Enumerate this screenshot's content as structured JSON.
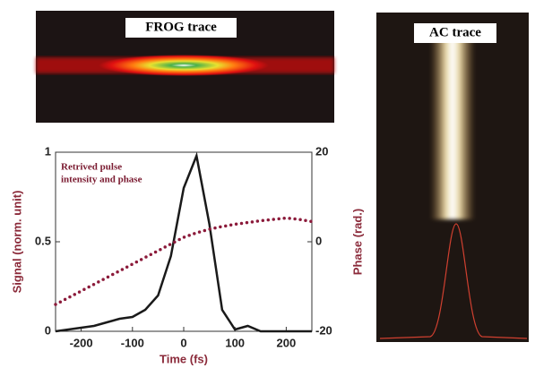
{
  "chart_data": {
    "type": "line",
    "frog_title": "FROG trace",
    "ac_title": "AC trace",
    "annotation": [
      "Retrived pulse",
      "intensity and phase"
    ],
    "x_label": "Time (fs)",
    "y_label": "Signal (norm. unit)",
    "y2_label": "Phase (rad.)",
    "x": [
      -250,
      -225,
      -200,
      -175,
      -150,
      -125,
      -100,
      -75,
      -50,
      -25,
      0,
      25,
      50,
      75,
      100,
      125,
      150,
      175,
      200,
      225,
      250
    ],
    "series": [
      {
        "color": "#1a1a1a",
        "line_style": "solid",
        "values": [
          0,
          0.01,
          0.02,
          0.03,
          0.05,
          0.07,
          0.08,
          0.12,
          0.2,
          0.42,
          0.8,
          0.98,
          0.6,
          0.12,
          0.01,
          0.03,
          0,
          0,
          0,
          0,
          0
        ]
      },
      {
        "color": "#8b1a3a",
        "line_style": "dotted",
        "axis": "y2",
        "values": [
          -14,
          -12.5,
          -11,
          -9.5,
          -8,
          -6.5,
          -5,
          -3.5,
          -2,
          -0.5,
          1,
          2,
          2.8,
          3.4,
          3.9,
          4.3,
          4.7,
          5,
          5.3,
          5,
          4.5
        ]
      }
    ],
    "xlim": [
      -250,
      250
    ],
    "xticks": [
      -200,
      -100,
      0,
      100,
      200
    ],
    "ylim": [
      0,
      1
    ],
    "yticks": [
      0,
      0.5,
      1
    ],
    "y2lim": [
      -20,
      20
    ],
    "y2ticks": [
      -20,
      0,
      20
    ]
  }
}
